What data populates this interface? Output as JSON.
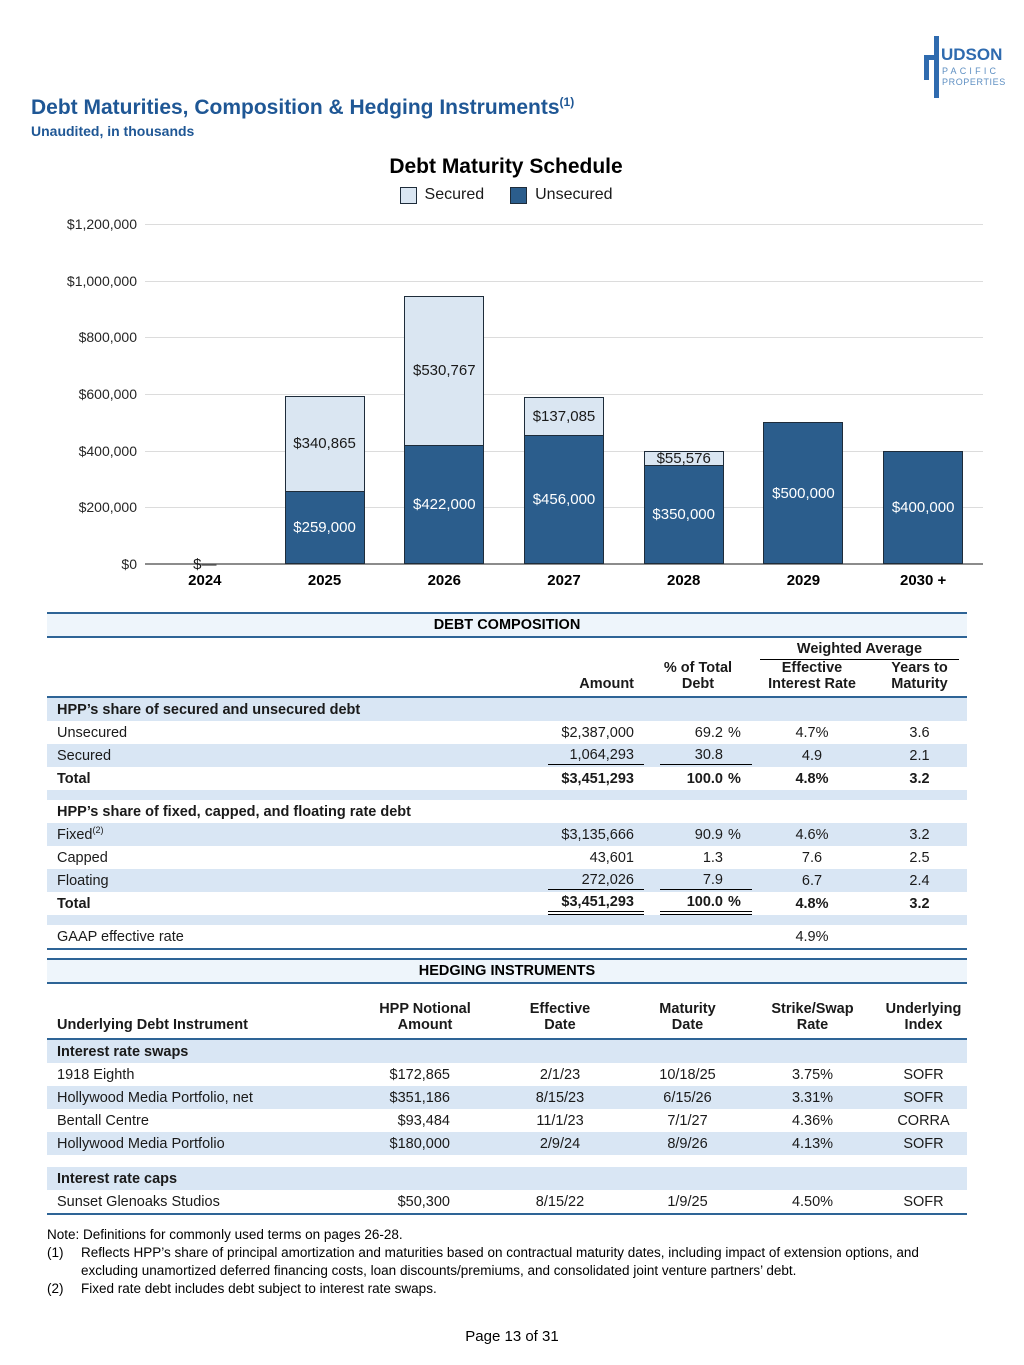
{
  "page": {
    "title": "Debt Maturities, Composition & Hedging Instruments",
    "title_sup": "(1)",
    "subtitle": "Unaudited, in thousands",
    "footer": "Page 13 of 31"
  },
  "logo": {
    "line1": "UDSON",
    "line2": "PACIFIC",
    "line3": "PROPERTIES"
  },
  "chart_data": {
    "type": "bar",
    "stacked": true,
    "title": "Debt Maturity Schedule",
    "legend_position": "top",
    "grid": true,
    "categories": [
      "2024",
      "2025",
      "2026",
      "2027",
      "2028",
      "2029",
      "2030 +"
    ],
    "series": [
      {
        "name": "Unsecured",
        "color": "#2b5d8c",
        "values": [
          0,
          259000,
          422000,
          456000,
          350000,
          500000,
          400000
        ],
        "labels": [
          "",
          "$259,000",
          "$422,000",
          "$456,000",
          "$350,000",
          "$500,000",
          "$400,000"
        ]
      },
      {
        "name": "Secured",
        "color": "#dae6f2",
        "values": [
          0,
          340865,
          530767,
          137085,
          55576,
          0,
          0
        ],
        "labels": [
          "",
          "$340,865",
          "$530,767",
          "$137,085",
          "$55,576",
          "",
          ""
        ]
      }
    ],
    "legend": [
      {
        "label": "Secured",
        "color": "#dae6f2"
      },
      {
        "label": "Unsecured",
        "color": "#2b5d8c"
      }
    ],
    "zero_label": "$—",
    "y_ticks": [
      "$1,200,000",
      "$1,000,000",
      "$800,000",
      "$600,000",
      "$400,000",
      "$200,000",
      "$0"
    ],
    "ylim": [
      0,
      1200000
    ],
    "xlabel": "",
    "ylabel": ""
  },
  "composition": {
    "header": "DEBT COMPOSITION",
    "weighted_average_label": "Weighted Average",
    "columns": {
      "amount": "Amount",
      "pct": "% of Total\nDebt",
      "rate": "Effective\nInterest Rate",
      "years": "Years to\nMaturity"
    },
    "sections": [
      {
        "title": "HPP’s share of secured and unsecured debt",
        "rows": [
          {
            "label": "Unsecured",
            "amount": "$2,387,000",
            "pct": "69.2",
            "pct_suffix": "%",
            "rate": "4.7%",
            "years": "3.6"
          },
          {
            "label": "Secured",
            "amount": "1,064,293",
            "pct": "30.8",
            "pct_suffix": "",
            "rate": "4.9",
            "years": "2.1",
            "rule": "single"
          },
          {
            "label": "Total",
            "amount": "$3,451,293",
            "pct": "100.0",
            "pct_suffix": "%",
            "rate": "4.8%",
            "years": "3.2",
            "bold": true
          }
        ]
      },
      {
        "title": "HPP’s share of fixed, capped, and floating rate debt",
        "rows": [
          {
            "label": "Fixed",
            "label_sup": "(2)",
            "amount": "$3,135,666",
            "pct": "90.9",
            "pct_suffix": "%",
            "rate": "4.6%",
            "years": "3.2"
          },
          {
            "label": "Capped",
            "amount": "43,601",
            "pct": "1.3",
            "pct_suffix": "",
            "rate": "7.6",
            "years": "2.5"
          },
          {
            "label": "Floating",
            "amount": "272,026",
            "pct": "7.9",
            "pct_suffix": "",
            "rate": "6.7",
            "years": "2.4",
            "rule": "single"
          },
          {
            "label": "Total",
            "amount": "$3,451,293",
            "pct": "100.0",
            "pct_suffix": "%",
            "rate": "4.8%",
            "years": "3.2",
            "bold": true,
            "rule": "double"
          }
        ]
      }
    ],
    "gaap": {
      "label": "GAAP effective rate",
      "rate": "4.9%"
    }
  },
  "hedging": {
    "header": "HEDGING INSTRUMENTS",
    "columns": {
      "instrument": "Underlying Debt Instrument",
      "notional": "HPP Notional\nAmount",
      "effective": "Effective\nDate",
      "maturity": "Maturity\nDate",
      "rate": "Strike/Swap\nRate",
      "index": "Underlying\nIndex"
    },
    "sections": [
      {
        "title": "Interest rate swaps",
        "rows": [
          {
            "name": "1918 Eighth",
            "notional": "$172,865",
            "effective": "2/1/23",
            "maturity": "10/18/25",
            "rate": "3.75%",
            "index": "SOFR"
          },
          {
            "name": "Hollywood Media Portfolio, net",
            "notional": "$351,186",
            "effective": "8/15/23",
            "maturity": "6/15/26",
            "rate": "3.31%",
            "index": "SOFR"
          },
          {
            "name": "Bentall Centre",
            "notional": "$93,484",
            "effective": "11/1/23",
            "maturity": "7/1/27",
            "rate": "4.36%",
            "index": "CORRA"
          },
          {
            "name": "Hollywood Media Portfolio",
            "notional": "$180,000",
            "effective": "2/9/24",
            "maturity": "8/9/26",
            "rate": "4.13%",
            "index": "SOFR"
          }
        ]
      },
      {
        "title": "Interest rate caps",
        "rows": [
          {
            "name": "Sunset Glenoaks Studios",
            "notional": "$50,300",
            "effective": "8/15/22",
            "maturity": "1/9/25",
            "rate": "4.50%",
            "index": "SOFR"
          }
        ]
      }
    ]
  },
  "notes": {
    "note": "Note: Definitions for commonly used terms on pages 26-28.",
    "items": [
      {
        "num": "(1)",
        "text": "Reflects HPP’s share of principal amortization and maturities based on contractual maturity dates, including impact of extension options, and excluding unamortized deferred financing costs, loan discounts/premiums, and consolidated joint venture partners’ debt."
      },
      {
        "num": "(2)",
        "text": "Fixed rate debt includes debt subject to interest rate swaps."
      }
    ]
  },
  "colors": {
    "accent_blue": "#1f5795",
    "table_line": "#2e6496",
    "stripe": "#d9e6f4",
    "band_bg": "#eef5fb",
    "bar_dark": "#2b5d8c",
    "bar_light": "#dae6f2",
    "bar_border": "#1e2c3a",
    "grid": "#dcdcdc",
    "logo_blue": "#2f6baf",
    "logo_light_blue": "#5e8fc2"
  }
}
